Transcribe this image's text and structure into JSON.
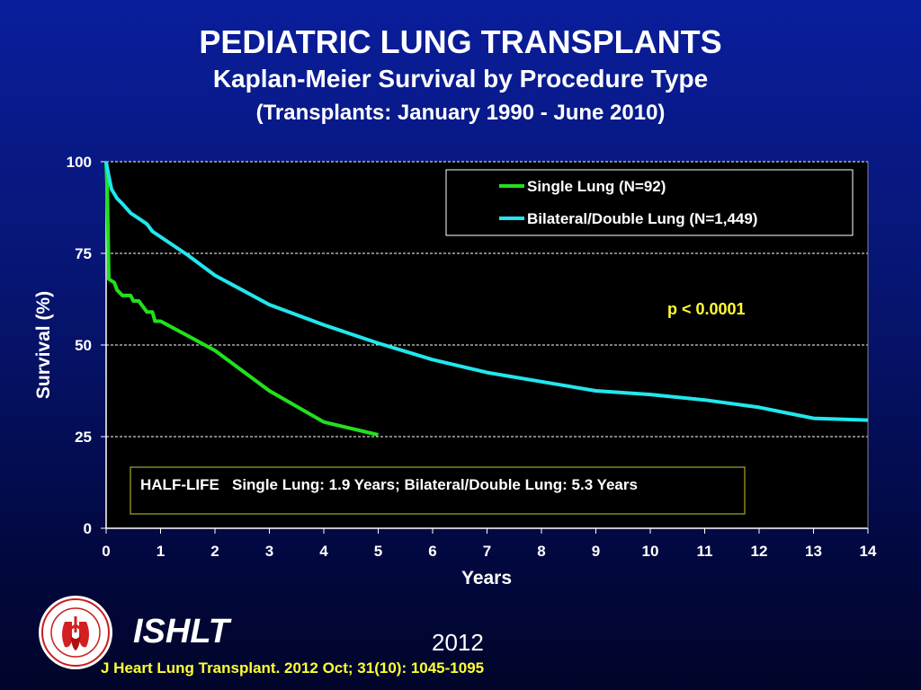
{
  "header": {
    "title": "PEDIATRIC LUNG TRANSPLANTS",
    "subtitle": "Kaplan-Meier Survival by Procedure Type",
    "range": "(Transplants: January 1990 - June 2010)"
  },
  "chart_data": {
    "type": "line",
    "xlabel": "Years",
    "ylabel": "Survival (%)",
    "xlim": [
      0,
      14
    ],
    "ylim": [
      0,
      100
    ],
    "x_ticks": [
      "0",
      "1",
      "2",
      "3",
      "4",
      "5",
      "6",
      "7",
      "8",
      "9",
      "10",
      "11",
      "12",
      "13",
      "14"
    ],
    "y_ticks": [
      "0",
      "25",
      "50",
      "75",
      "100"
    ],
    "grid": "horizontal dashed",
    "legend_position": "top-right",
    "series": [
      {
        "name": "Single Lung (N=92)",
        "color": "#22e01e",
        "points": [
          [
            0,
            100
          ],
          [
            0.02,
            93
          ],
          [
            0.05,
            68
          ],
          [
            0.15,
            67
          ],
          [
            0.2,
            65
          ],
          [
            0.3,
            63.5
          ],
          [
            0.45,
            63.5
          ],
          [
            0.5,
            62
          ],
          [
            0.6,
            62
          ],
          [
            0.75,
            59
          ],
          [
            0.85,
            59
          ],
          [
            0.9,
            56.5
          ],
          [
            1,
            56.5
          ],
          [
            1.5,
            52.5
          ],
          [
            2,
            48.5
          ],
          [
            3,
            37.5
          ],
          [
            4,
            29
          ],
          [
            5,
            25.5
          ]
        ]
      },
      {
        "name": "Bilateral/Double Lung  (N=1,449)",
        "color": "#22e6ee",
        "points": [
          [
            0,
            100
          ],
          [
            0.05,
            96
          ],
          [
            0.1,
            92.5
          ],
          [
            0.2,
            90
          ],
          [
            0.3,
            88.5
          ],
          [
            0.45,
            86
          ],
          [
            0.6,
            84.5
          ],
          [
            0.75,
            83
          ],
          [
            0.85,
            81
          ],
          [
            1,
            79.5
          ],
          [
            1.5,
            74.5
          ],
          [
            2,
            69
          ],
          [
            3,
            61
          ],
          [
            4,
            55.5
          ],
          [
            5,
            50.5
          ],
          [
            6,
            46
          ],
          [
            7,
            42.5
          ],
          [
            8,
            40
          ],
          [
            9,
            37.5
          ],
          [
            10,
            36.5
          ],
          [
            11,
            35
          ],
          [
            12,
            33
          ],
          [
            13,
            30
          ],
          [
            14,
            29.5
          ]
        ]
      }
    ],
    "annotations": {
      "pvalue": "p < 0.0001",
      "halflife": "HALF-LIFE   Single Lung: 1.9 Years; Bilateral/Double Lung: 5.3 Years"
    }
  },
  "footer": {
    "org": "ISHLT",
    "year": "2012",
    "citation": "J Heart Lung Transplant.  2012 Oct; 31(10): 1045-1095",
    "logo_icon": "ishlt-seal-icon"
  },
  "colors": {
    "pvalue_text": "#ffff33",
    "halflife_border": "#c8c832",
    "citation_text": "#ffff33"
  }
}
